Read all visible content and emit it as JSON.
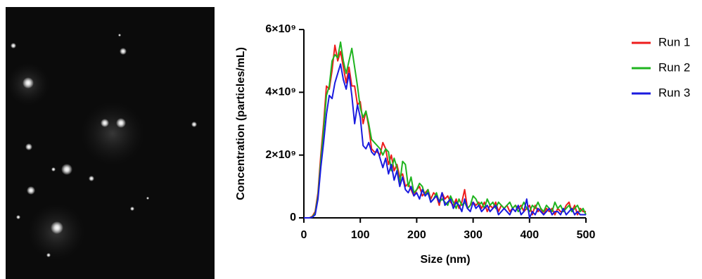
{
  "chart_data": {
    "type": "line",
    "xlabel": "Size (nm)",
    "ylabel": "Concentration (particles/mL)",
    "x": [
      0,
      5,
      10,
      15,
      20,
      25,
      30,
      35,
      40,
      45,
      50,
      55,
      60,
      65,
      70,
      75,
      80,
      85,
      90,
      95,
      100,
      105,
      110,
      115,
      120,
      125,
      130,
      135,
      140,
      145,
      150,
      155,
      160,
      165,
      170,
      175,
      180,
      185,
      190,
      195,
      200,
      205,
      210,
      215,
      220,
      225,
      230,
      235,
      240,
      245,
      250,
      255,
      260,
      265,
      270,
      275,
      280,
      285,
      290,
      295,
      300,
      305,
      310,
      315,
      320,
      325,
      330,
      335,
      340,
      345,
      350,
      355,
      360,
      365,
      370,
      375,
      380,
      385,
      390,
      395,
      400,
      405,
      410,
      415,
      420,
      425,
      430,
      435,
      440,
      445,
      450,
      455,
      460,
      465,
      470,
      475,
      480,
      485,
      490,
      495,
      500
    ],
    "xlim": [
      0,
      500
    ],
    "xticks": [
      0,
      100,
      200,
      300,
      400,
      500
    ],
    "ylim": [
      0,
      6000000000.0
    ],
    "yticks": [
      0,
      {
        "value": 2000000000.0,
        "label": "2×10⁹"
      },
      {
        "value": 4000000000.0,
        "label": "4×10⁹"
      },
      {
        "value": 6000000000.0,
        "label": "6×10⁹"
      }
    ],
    "series": [
      {
        "name": "Run 1",
        "color": "#ee1c1c",
        "values": [
          0,
          0,
          0,
          50000000.0,
          200000000.0,
          800000000.0,
          2000000000.0,
          3000000000.0,
          4200000000.0,
          4100000000.0,
          4700000000.0,
          5500000000.0,
          5000000000.0,
          5300000000.0,
          4800000000.0,
          4300000000.0,
          4800000000.0,
          4200000000.0,
          4200000000.0,
          3600000000.0,
          3700000000.0,
          3000000000.0,
          3400000000.0,
          2900000000.0,
          2200000000.0,
          2100000000.0,
          2100000000.0,
          2000000000.0,
          2400000000.0,
          2200000000.0,
          1700000000.0,
          2000000000.0,
          1500000000.0,
          1700000000.0,
          1300000000.0,
          1400000000.0,
          1000000000.0,
          1100000000.0,
          900000000.0,
          700000000.0,
          900000000.0,
          1000000000.0,
          700000000.0,
          800000000.0,
          900000000.0,
          600000000.0,
          800000000.0,
          700000000.0,
          400000000.0,
          800000000.0,
          600000000.0,
          700000000.0,
          500000000.0,
          400000000.0,
          600000000.0,
          300000000.0,
          500000000.0,
          900000000.0,
          300000000.0,
          400000000.0,
          500000000.0,
          400000000.0,
          500000000.0,
          300000000.0,
          500000000.0,
          200000000.0,
          400000000.0,
          300000000.0,
          500000000.0,
          200000000.0,
          400000000.0,
          300000000.0,
          400000000.0,
          200000000.0,
          300000000.0,
          400000000.0,
          300000000.0,
          400000000.0,
          200000000.0,
          300000000.0,
          400000000.0,
          100000000.0,
          400000000.0,
          200000000.0,
          300000000.0,
          100000000.0,
          300000000.0,
          200000000.0,
          300000000.0,
          100000000.0,
          300000000.0,
          200000000.0,
          200000000.0,
          400000000.0,
          500000000.0,
          200000000.0,
          400000000.0,
          100000000.0,
          300000000.0,
          200000000.0,
          200000000.0
        ]
      },
      {
        "name": "Run 2",
        "color": "#1fb41f",
        "values": [
          0,
          0,
          0,
          30000000.0,
          150000000.0,
          700000000.0,
          1800000000.0,
          2800000000.0,
          3900000000.0,
          4200000000.0,
          5000000000.0,
          5200000000.0,
          5100000000.0,
          5600000000.0,
          5000000000.0,
          4600000000.0,
          5000000000.0,
          5400000000.0,
          4800000000.0,
          4200000000.0,
          3500000000.0,
          3200000000.0,
          3400000000.0,
          3000000000.0,
          2500000000.0,
          2400000000.0,
          2300000000.0,
          2200000000.0,
          2000000000.0,
          2200000000.0,
          2100000000.0,
          1500000000.0,
          1900000000.0,
          1600000000.0,
          1100000000.0,
          1800000000.0,
          1700000000.0,
          1000000000.0,
          1300000000.0,
          800000000.0,
          900000000.0,
          1100000000.0,
          1000000000.0,
          700000000.0,
          900000000.0,
          500000000.0,
          600000000.0,
          800000000.0,
          500000000.0,
          600000000.0,
          500000000.0,
          400000000.0,
          700000000.0,
          500000000.0,
          300000000.0,
          600000000.0,
          400000000.0,
          500000000.0,
          300000000.0,
          400000000.0,
          700000000.0,
          600000000.0,
          400000000.0,
          500000000.0,
          300000000.0,
          600000000.0,
          400000000.0,
          500000000.0,
          300000000.0,
          500000000.0,
          400000000.0,
          300000000.0,
          400000000.0,
          500000000.0,
          300000000.0,
          400000000.0,
          200000000.0,
          300000000.0,
          500000000.0,
          300000000.0,
          200000000.0,
          400000000.0,
          300000000.0,
          500000000.0,
          300000000.0,
          200000000.0,
          400000000.0,
          300000000.0,
          200000000.0,
          500000000.0,
          300000000.0,
          400000000.0,
          200000000.0,
          300000000.0,
          400000000.0,
          200000000.0,
          300000000.0,
          400000000.0,
          200000000.0,
          300000000.0,
          100000000.0
        ]
      },
      {
        "name": "Run 3",
        "color": "#1a1adf",
        "values": [
          0,
          0,
          0,
          20000000.0,
          100000000.0,
          600000000.0,
          1600000000.0,
          2400000000.0,
          3300000000.0,
          3900000000.0,
          3800000000.0,
          4300000000.0,
          4600000000.0,
          4900000000.0,
          4400000000.0,
          4100000000.0,
          4600000000.0,
          3900000000.0,
          3000000000.0,
          3600000000.0,
          3200000000.0,
          2300000000.0,
          2200000000.0,
          2400000000.0,
          2100000000.0,
          2000000000.0,
          2200000000.0,
          1900000000.0,
          1600000000.0,
          1900000000.0,
          1400000000.0,
          1700000000.0,
          1200000000.0,
          1500000000.0,
          1000000000.0,
          1300000000.0,
          900000000.0,
          800000000.0,
          1000000000.0,
          700000000.0,
          800000000.0,
          600000000.0,
          900000000.0,
          700000000.0,
          800000000.0,
          500000000.0,
          600000000.0,
          700000000.0,
          500000000.0,
          800000000.0,
          400000000.0,
          500000000.0,
          600000000.0,
          300000000.0,
          500000000.0,
          400000000.0,
          200000000.0,
          600000000.0,
          300000000.0,
          200000000.0,
          500000000.0,
          300000000.0,
          400000000.0,
          200000000.0,
          300000000.0,
          400000000.0,
          200000000.0,
          300000000.0,
          400000000.0,
          100000000.0,
          200000000.0,
          300000000.0,
          200000000.0,
          100000000.0,
          300000000.0,
          200000000.0,
          400000000.0,
          100000000.0,
          200000000.0,
          600000000.0,
          0,
          200000000.0,
          100000000.0,
          300000000.0,
          200000000.0,
          100000000.0,
          200000000.0,
          300000000.0,
          100000000.0,
          200000000.0,
          200000000.0,
          100000000.0,
          300000000.0,
          100000000.0,
          200000000.0,
          300000000.0,
          100000000.0,
          200000000.0,
          100000000.0,
          100000000.0,
          100000000.0
        ]
      }
    ]
  }
}
